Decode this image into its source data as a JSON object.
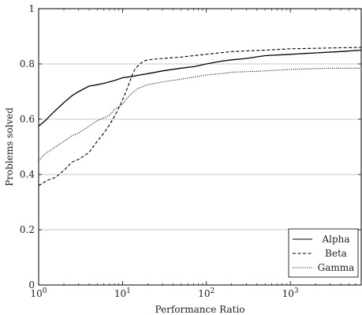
{
  "chart_data": {
    "type": "line",
    "title": "",
    "xlabel": "Performance Ratio",
    "ylabel": "Problems solved",
    "x_scale": "log",
    "xlim": [
      1,
      7000
    ],
    "ylim": [
      0,
      1
    ],
    "grid": "horizontal",
    "legend_position": "bottom-right",
    "x_ticks": [
      {
        "value": 1,
        "base": "10",
        "exp": "0"
      },
      {
        "value": 10,
        "base": "10",
        "exp": "1"
      },
      {
        "value": 100,
        "base": "10",
        "exp": "2"
      },
      {
        "value": 1000,
        "base": "10",
        "exp": "3"
      }
    ],
    "y_ticks": [
      {
        "value": 0,
        "label": "0"
      },
      {
        "value": 0.2,
        "label": "0.2"
      },
      {
        "value": 0.4,
        "label": "0.4"
      },
      {
        "value": 0.6,
        "label": "0.6"
      },
      {
        "value": 0.8,
        "label": "0.8"
      },
      {
        "value": 1,
        "label": "1"
      }
    ],
    "series": [
      {
        "name": "Alpha",
        "style": "solid",
        "points": [
          [
            1,
            0.575
          ],
          [
            1.2,
            0.595
          ],
          [
            1.5,
            0.625
          ],
          [
            2,
            0.66
          ],
          [
            2.5,
            0.685
          ],
          [
            3,
            0.7
          ],
          [
            4,
            0.72
          ],
          [
            5,
            0.725
          ],
          [
            6,
            0.73
          ],
          [
            8,
            0.74
          ],
          [
            10,
            0.75
          ],
          [
            13,
            0.755
          ],
          [
            16,
            0.76
          ],
          [
            20,
            0.765
          ],
          [
            30,
            0.775
          ],
          [
            50,
            0.785
          ],
          [
            70,
            0.79
          ],
          [
            100,
            0.8
          ],
          [
            150,
            0.81
          ],
          [
            200,
            0.815
          ],
          [
            300,
            0.82
          ],
          [
            500,
            0.83
          ],
          [
            1000,
            0.835
          ],
          [
            2000,
            0.84
          ],
          [
            4000,
            0.845
          ],
          [
            7000,
            0.85
          ]
        ]
      },
      {
        "name": "Beta",
        "style": "dashed",
        "points": [
          [
            1,
            0.36
          ],
          [
            1.3,
            0.38
          ],
          [
            1.6,
            0.39
          ],
          [
            2,
            0.415
          ],
          [
            2.5,
            0.445
          ],
          [
            3,
            0.455
          ],
          [
            4,
            0.48
          ],
          [
            5,
            0.52
          ],
          [
            6,
            0.55
          ],
          [
            7,
            0.58
          ],
          [
            8,
            0.61
          ],
          [
            9,
            0.64
          ],
          [
            10,
            0.67
          ],
          [
            11,
            0.7
          ],
          [
            12,
            0.73
          ],
          [
            13,
            0.76
          ],
          [
            14,
            0.78
          ],
          [
            16,
            0.8
          ],
          [
            18,
            0.81
          ],
          [
            20,
            0.815
          ],
          [
            30,
            0.82
          ],
          [
            50,
            0.825
          ],
          [
            70,
            0.83
          ],
          [
            100,
            0.835
          ],
          [
            200,
            0.845
          ],
          [
            500,
            0.85
          ],
          [
            1000,
            0.855
          ],
          [
            7000,
            0.86
          ]
        ]
      },
      {
        "name": "Gamma",
        "style": "dotted",
        "points": [
          [
            1,
            0.45
          ],
          [
            1.2,
            0.475
          ],
          [
            1.5,
            0.495
          ],
          [
            2,
            0.52
          ],
          [
            2.5,
            0.54
          ],
          [
            3,
            0.55
          ],
          [
            4,
            0.575
          ],
          [
            5,
            0.595
          ],
          [
            6,
            0.605
          ],
          [
            7,
            0.615
          ],
          [
            8,
            0.635
          ],
          [
            10,
            0.655
          ],
          [
            12,
            0.685
          ],
          [
            15,
            0.71
          ],
          [
            20,
            0.725
          ],
          [
            30,
            0.735
          ],
          [
            50,
            0.745
          ],
          [
            100,
            0.76
          ],
          [
            150,
            0.765
          ],
          [
            200,
            0.77
          ],
          [
            500,
            0.775
          ],
          [
            1000,
            0.78
          ],
          [
            3000,
            0.785
          ],
          [
            7000,
            0.785
          ]
        ]
      }
    ]
  }
}
